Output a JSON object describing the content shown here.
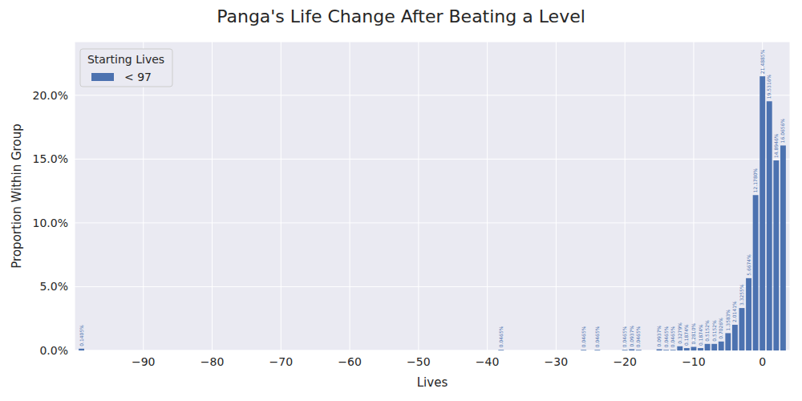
{
  "chart_data": {
    "type": "bar",
    "title": "Panga's Life Change After Beating a Level",
    "x_label": "Lives",
    "y_label": "Proportion Within Group",
    "legend_title": "Starting Lives",
    "legend": "upper left",
    "grid": true,
    "data_labels": true,
    "x": [
      -99,
      -38,
      -26,
      -24,
      -20,
      -19,
      -18,
      -15,
      -14,
      -13,
      -12,
      -11,
      -10,
      -9,
      -8,
      -7,
      -6,
      -5,
      -4,
      -3,
      -2,
      -1,
      0,
      1,
      2,
      3
    ],
    "series": [
      {
        "name": "< 97",
        "color": "#4c72b0",
        "values": [
          0.1405,
          0.0465,
          0.0465,
          0.0465,
          0.0465,
          0.0937,
          0.0465,
          0.0937,
          0.0465,
          0.0465,
          0.3279,
          0.1874,
          0.281,
          0.1874,
          0.5152,
          0.5152,
          0.7026,
          1.3583,
          2.0141,
          3.3255,
          5.6674,
          12.178,
          21.4885,
          19.5316,
          14.8946,
          16.0656
        ],
        "value_labels": [
          "0.1405%",
          "0.0465%",
          "0.0465%",
          "0.0465%",
          "0.0465%",
          "0.0937%",
          "0.0465%",
          "0.0937%",
          "0.0465%",
          "0.0465%",
          "0.3279%",
          "0.1874%",
          "0.2810%",
          "0.1874%",
          "0.5152%",
          "0.5152%",
          "0.7026%",
          "1.3583%",
          "2.0141%",
          "3.3255%",
          "5.6674%",
          "12.1780%",
          "21.4885%",
          "19.5316%",
          "14.8946%",
          "16.0656%"
        ]
      }
    ],
    "xlim": [
      -100,
      4
    ],
    "xticks": [
      {
        "value": -90,
        "label": "−90"
      },
      {
        "value": -80,
        "label": "−80"
      },
      {
        "value": -70,
        "label": "−70"
      },
      {
        "value": -60,
        "label": "−60"
      },
      {
        "value": -50,
        "label": "−50"
      },
      {
        "value": -40,
        "label": "−40"
      },
      {
        "value": -30,
        "label": "−30"
      },
      {
        "value": -20,
        "label": "−20"
      },
      {
        "value": -10,
        "label": "−10"
      },
      0
    ],
    "ylim": [
      0,
      24.2
    ],
    "yticks": [
      {
        "value": 0,
        "label": "0.0%"
      },
      {
        "value": 5,
        "label": "5.0%"
      },
      {
        "value": 10,
        "label": "10.0%"
      },
      {
        "value": 15,
        "label": "15.0%"
      },
      {
        "value": 20,
        "label": "20.0%"
      }
    ]
  }
}
